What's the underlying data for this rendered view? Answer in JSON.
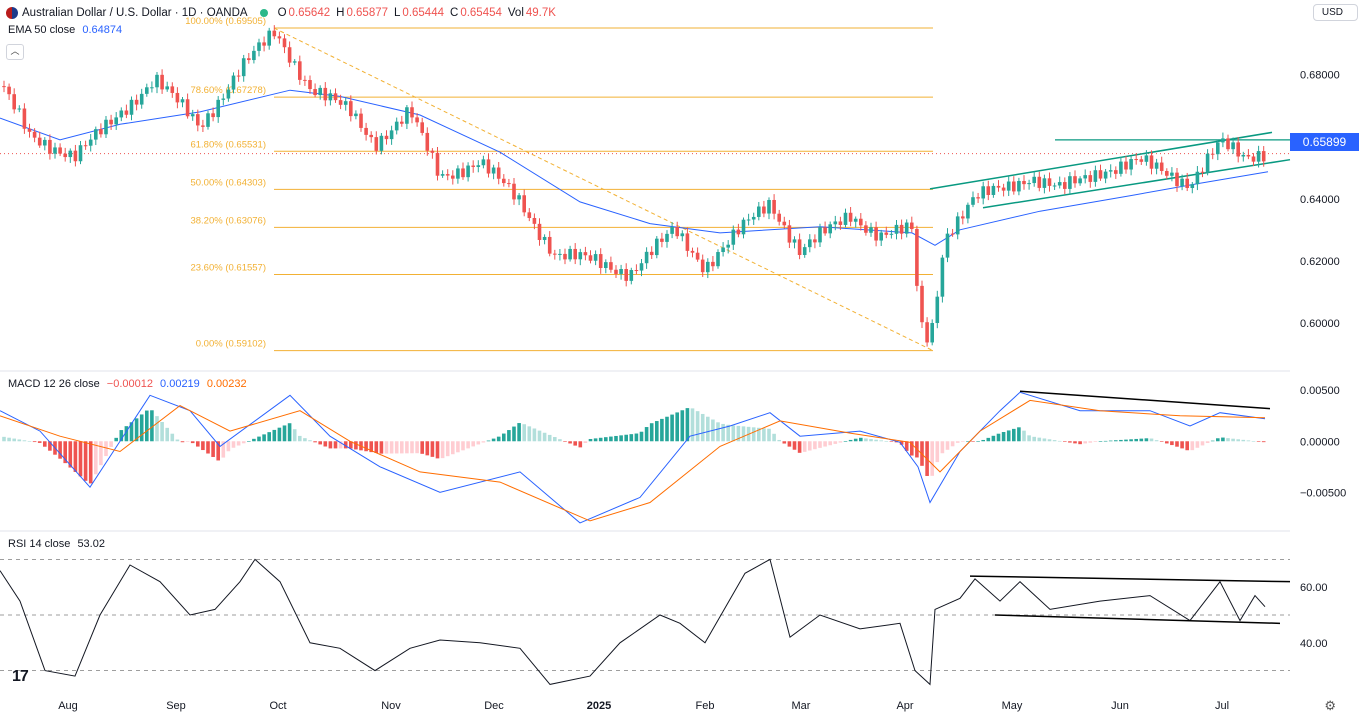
{
  "header": {
    "symbol": "Australian Dollar / U.S. Dollar · 1D · OANDA",
    "open_label": "O",
    "open": "0.65642",
    "high_label": "H",
    "high": "0.65877",
    "low_label": "L",
    "low": "0.65444",
    "close_label": "C",
    "close": "0.65454",
    "vol_label": "Vol",
    "vol": "49.7K"
  },
  "ema_label": {
    "name": "EMA 50 close",
    "value": "0.64874"
  },
  "currency_button": "USD",
  "last_price_badge": "0.65899",
  "macd_label": {
    "name": "MACD 12 26 close",
    "hist": "−0.00012",
    "macd": "0.00219",
    "signal": "0.00232"
  },
  "rsi_label": {
    "name": "RSI 14 close",
    "value": "53.02"
  },
  "logo_text": "17",
  "colors": {
    "up": "#26a69a",
    "down": "#ef5350",
    "ema": "#2962ff",
    "fib": "#f2b134",
    "channel": "#089981",
    "signal": "#ff6d00"
  },
  "chart_data": [
    {
      "type": "candlestick",
      "title": "Australian Dollar / U.S. Dollar · 1D · OANDA",
      "ylim": [
        0.588,
        0.697
      ],
      "y_ticks": [
        "0.68000",
        "0.66000",
        "0.64000",
        "0.62000",
        "0.60000"
      ],
      "x_ticks": [
        "Aug",
        "Sep",
        "Oct",
        "Nov",
        "Dec",
        "2025",
        "Feb",
        "Mar",
        "Apr",
        "May",
        "Jun",
        "Jul"
      ],
      "price_path": [
        [
          0,
          0.6775
        ],
        [
          30,
          0.6598
        ],
        [
          75,
          0.654
        ],
        [
          110,
          0.664
        ],
        [
          155,
          0.679
        ],
        [
          200,
          0.663
        ],
        [
          240,
          0.682
        ],
        [
          275,
          0.6935
        ],
        [
          310,
          0.676
        ],
        [
          350,
          0.668
        ],
        [
          375,
          0.658
        ],
        [
          410,
          0.668
        ],
        [
          440,
          0.647
        ],
        [
          480,
          0.652
        ],
        [
          520,
          0.639
        ],
        [
          555,
          0.622
        ],
        [
          595,
          0.62
        ],
        [
          630,
          0.616
        ],
        [
          675,
          0.63
        ],
        [
          705,
          0.618
        ],
        [
          750,
          0.633
        ],
        [
          770,
          0.639
        ],
        [
          800,
          0.623
        ],
        [
          850,
          0.635
        ],
        [
          880,
          0.628
        ],
        [
          912,
          0.63
        ],
        [
          920,
          0.6
        ],
        [
          930,
          0.594
        ],
        [
          945,
          0.628
        ],
        [
          975,
          0.64
        ],
        [
          1030,
          0.647
        ],
        [
          1060,
          0.643
        ],
        [
          1100,
          0.649
        ],
        [
          1140,
          0.652
        ],
        [
          1190,
          0.645
        ],
        [
          1220,
          0.658
        ],
        [
          1245,
          0.653
        ],
        [
          1262,
          0.655
        ],
        [
          1268,
          0.6545
        ]
      ],
      "ema50_path": [
        [
          0,
          0.666
        ],
        [
          60,
          0.659
        ],
        [
          120,
          0.664
        ],
        [
          200,
          0.668
        ],
        [
          290,
          0.675
        ],
        [
          340,
          0.673
        ],
        [
          420,
          0.667
        ],
        [
          500,
          0.655
        ],
        [
          580,
          0.639
        ],
        [
          650,
          0.632
        ],
        [
          720,
          0.629
        ],
        [
          820,
          0.631
        ],
        [
          912,
          0.629
        ],
        [
          935,
          0.625
        ],
        [
          960,
          0.63
        ],
        [
          1040,
          0.636
        ],
        [
          1130,
          0.641
        ],
        [
          1200,
          0.645
        ],
        [
          1268,
          0.6487
        ]
      ],
      "fib_levels": [
        {
          "label": "100.00% (0.69505)",
          "value": 0.69505
        },
        {
          "label": "78.60% (0.67278)",
          "value": 0.67278
        },
        {
          "label": "61.80% (0.65531)",
          "value": 0.65531
        },
        {
          "label": "50.00% (0.64303)",
          "value": 0.64303
        },
        {
          "label": "38.20% (0.63076)",
          "value": 0.63076
        },
        {
          "label": "23.60% (0.61557)",
          "value": 0.61557
        },
        {
          "label": "0.00% (0.59102)",
          "value": 0.59102
        }
      ],
      "last_price": 0.65454,
      "resistance_level": 0.65899
    },
    {
      "type": "line",
      "title": "MACD 12 26 close",
      "ylim": [
        -0.0085,
        0.0062
      ],
      "y_ticks": [
        "0.00500",
        "0.00000",
        "−0.00500"
      ],
      "macd_path": [
        [
          0,
          0.003
        ],
        [
          40,
          0.001
        ],
        [
          90,
          -0.0045
        ],
        [
          150,
          0.0045
        ],
        [
          190,
          0.003
        ],
        [
          220,
          -0.0005
        ],
        [
          290,
          0.0045
        ],
        [
          330,
          0.0005
        ],
        [
          380,
          -0.0025
        ],
        [
          440,
          -0.005
        ],
        [
          520,
          -0.003
        ],
        [
          580,
          -0.008
        ],
        [
          640,
          -0.0055
        ],
        [
          690,
          0.0005
        ],
        [
          730,
          0.0015
        ],
        [
          770,
          0.0028
        ],
        [
          800,
          0.0005
        ],
        [
          860,
          0.001
        ],
        [
          900,
          -0.0001
        ],
        [
          918,
          -0.0025
        ],
        [
          930,
          -0.006
        ],
        [
          960,
          -0.001
        ],
        [
          1000,
          0.003
        ],
        [
          1020,
          0.0048
        ],
        [
          1080,
          0.003
        ],
        [
          1150,
          0.003
        ],
        [
          1190,
          0.0015
        ],
        [
          1220,
          0.0028
        ],
        [
          1265,
          0.0022
        ]
      ],
      "signal_path": [
        [
          0,
          0.0025
        ],
        [
          60,
          0.0005
        ],
        [
          120,
          -0.001
        ],
        [
          180,
          0.0035
        ],
        [
          230,
          0.001
        ],
        [
          300,
          0.003
        ],
        [
          350,
          0.0
        ],
        [
          420,
          -0.003
        ],
        [
          500,
          -0.004
        ],
        [
          590,
          -0.0078
        ],
        [
          650,
          -0.006
        ],
        [
          720,
          -0.0005
        ],
        [
          780,
          0.002
        ],
        [
          850,
          0.0008
        ],
        [
          910,
          -0.0001
        ],
        [
          940,
          -0.003
        ],
        [
          980,
          0.001
        ],
        [
          1030,
          0.004
        ],
        [
          1100,
          0.003
        ],
        [
          1180,
          0.0025
        ],
        [
          1265,
          0.0023
        ]
      ],
      "divergence_line": [
        [
          1020,
          0.0049
        ],
        [
          1270,
          0.0032
        ]
      ]
    },
    {
      "type": "line",
      "title": "RSI 14 close",
      "ylim": [
        23,
        77
      ],
      "y_ticks": [
        "60.00",
        "40.00"
      ],
      "bands": [
        70,
        50,
        30
      ],
      "rsi_path": [
        [
          0,
          66
        ],
        [
          20,
          55
        ],
        [
          45,
          30
        ],
        [
          75,
          28
        ],
        [
          100,
          50
        ],
        [
          130,
          68
        ],
        [
          160,
          62
        ],
        [
          190,
          50
        ],
        [
          215,
          52
        ],
        [
          240,
          62
        ],
        [
          255,
          70
        ],
        [
          280,
          62
        ],
        [
          310,
          40
        ],
        [
          340,
          38
        ],
        [
          375,
          30
        ],
        [
          410,
          38
        ],
        [
          440,
          41
        ],
        [
          480,
          40
        ],
        [
          520,
          38
        ],
        [
          550,
          25
        ],
        [
          590,
          28
        ],
        [
          620,
          40
        ],
        [
          660,
          50
        ],
        [
          680,
          47
        ],
        [
          705,
          40
        ],
        [
          745,
          65
        ],
        [
          770,
          70
        ],
        [
          790,
          42
        ],
        [
          820,
          50
        ],
        [
          860,
          45
        ],
        [
          900,
          47
        ],
        [
          915,
          30
        ],
        [
          930,
          25
        ],
        [
          935,
          52
        ],
        [
          960,
          56
        ],
        [
          975,
          63
        ],
        [
          1000,
          55
        ],
        [
          1020,
          62
        ],
        [
          1050,
          52
        ],
        [
          1100,
          55
        ],
        [
          1150,
          57
        ],
        [
          1190,
          48
        ],
        [
          1220,
          62
        ],
        [
          1240,
          48
        ],
        [
          1255,
          57
        ],
        [
          1265,
          53
        ]
      ],
      "channel_upper": [
        [
          970,
          64
        ],
        [
          1290,
          62
        ]
      ],
      "channel_lower": [
        [
          995,
          50
        ],
        [
          1280,
          47
        ]
      ]
    }
  ]
}
